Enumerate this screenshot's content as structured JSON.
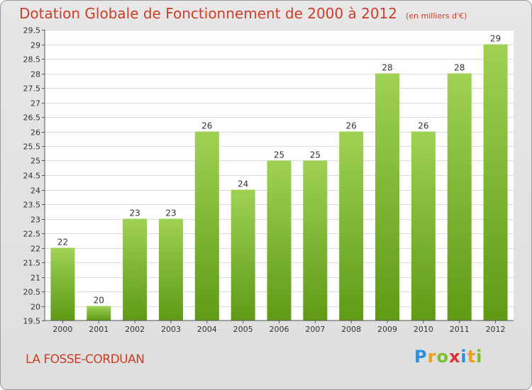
{
  "title": "Dotation Globale de Fonctionnement de 2000 à 2012",
  "subtitle": "(en milliers d'€)",
  "place": "LA FOSSE-CORDUAN",
  "brand": {
    "letters": [
      "P",
      "r",
      "o",
      "x",
      "i",
      "t",
      "i"
    ],
    "colors": [
      "#2f8fdc",
      "#e8a020",
      "#7bbf2a",
      "#e03030",
      "#2f8fdc",
      "#e8a020",
      "#7bbf2a"
    ]
  },
  "chart_data": {
    "type": "bar",
    "categories": [
      "2000",
      "2001",
      "2002",
      "2003",
      "2004",
      "2005",
      "2006",
      "2007",
      "2008",
      "2009",
      "2010",
      "2011",
      "2012"
    ],
    "values": [
      22,
      20,
      23,
      23,
      26,
      24,
      25,
      25,
      26,
      28,
      26,
      28,
      29
    ],
    "value_labels": [
      "22",
      "20",
      "23",
      "23",
      "26",
      "24",
      "25",
      "25",
      "26",
      "28",
      "26",
      "28",
      "29"
    ],
    "ylim": [
      19.5,
      29.5
    ],
    "yticks": [
      19.5,
      20,
      20.5,
      21,
      21.5,
      22,
      22.5,
      23,
      23.5,
      24,
      24.5,
      25,
      25.5,
      26,
      26.5,
      27,
      27.5,
      28,
      28.5,
      29,
      29.5
    ],
    "ytick_labels": [
      "19.5",
      "20",
      "20.5",
      "21",
      "21.5",
      "22",
      "22.5",
      "23",
      "23.5",
      "24",
      "24.5",
      "25",
      "25.5",
      "26",
      "26.5",
      "27",
      "27.5",
      "28",
      "28.5",
      "29",
      "29.5"
    ],
    "grid": true,
    "bar_color_top": "#9fd155",
    "bar_color_bottom": "#5f9a16"
  }
}
